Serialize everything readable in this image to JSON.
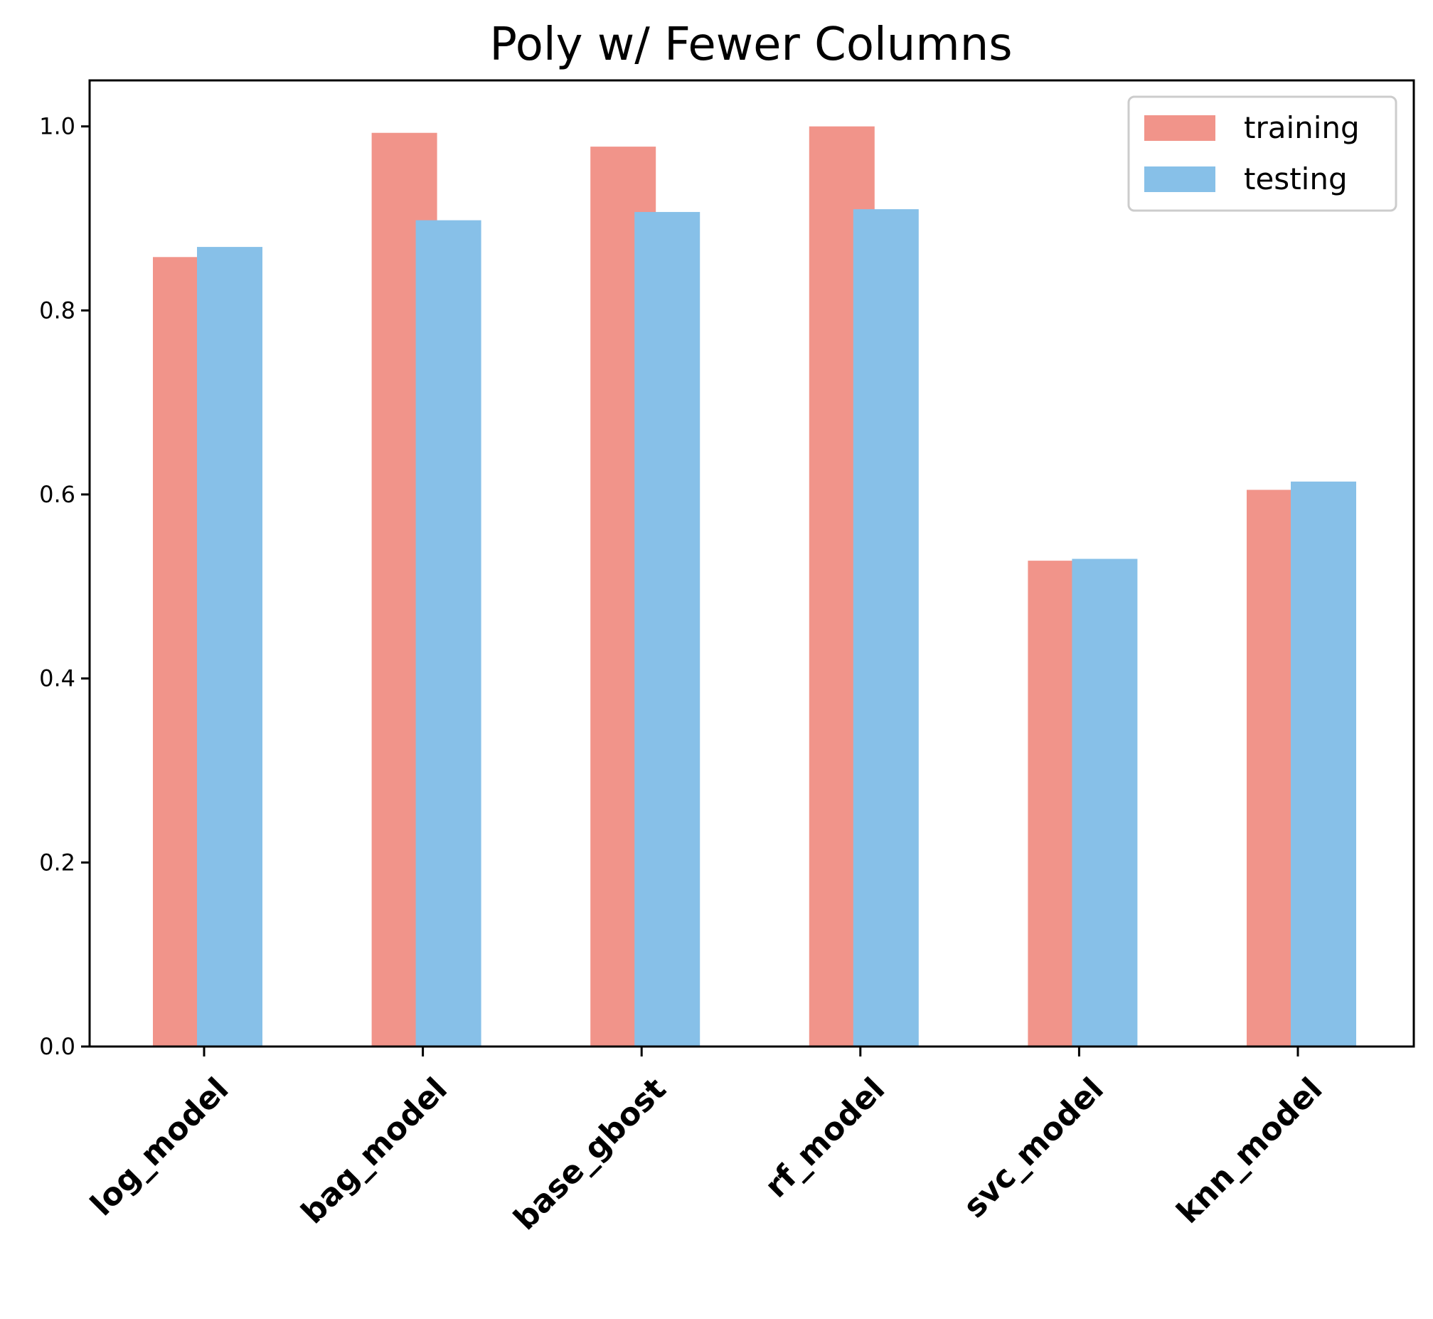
{
  "chart_data": {
    "type": "bar",
    "title": "Poly w/ Fewer Columns",
    "xlabel": "",
    "ylabel": "",
    "categories": [
      "log_model",
      "bag_model",
      "base_gbost",
      "rf_model",
      "svc_model",
      "knn_model"
    ],
    "series": [
      {
        "name": "training",
        "color": "#f1948a",
        "values": [
          0.858,
          0.993,
          0.978,
          1.0,
          0.528,
          0.605
        ]
      },
      {
        "name": "testing",
        "color": "#87c0e8",
        "values": [
          0.869,
          0.898,
          0.907,
          0.91,
          0.53,
          0.614
        ]
      }
    ],
    "ylim": [
      0,
      1.05
    ],
    "yticks": [
      "0.0",
      "0.2",
      "0.4",
      "0.6",
      "0.8",
      "1.0"
    ],
    "grid": false,
    "legend_position": "top-right"
  }
}
